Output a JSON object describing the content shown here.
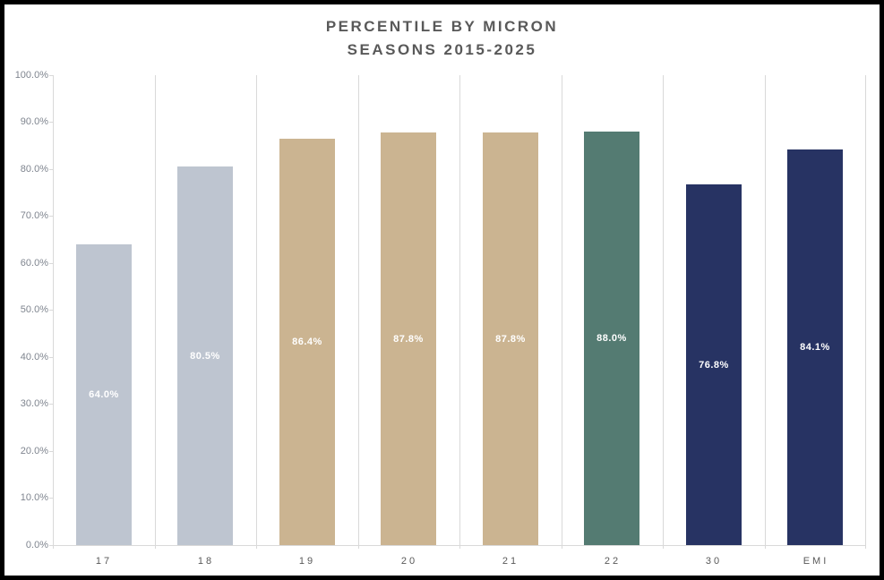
{
  "title": {
    "line1": "PERCENTILE BY MICRON",
    "line2": "SEASONS 2015-2025"
  },
  "chart_data": {
    "type": "bar",
    "title": "PERCENTILE BY MICRON SEASONS 2015-2025",
    "categories": [
      "17",
      "18",
      "19",
      "20",
      "21",
      "22",
      "30",
      "EMI"
    ],
    "values": [
      64.0,
      80.5,
      86.4,
      87.8,
      87.8,
      88.0,
      76.8,
      84.1
    ],
    "bar_labels": [
      "64.0%",
      "80.5%",
      "86.4%",
      "87.8%",
      "87.8%",
      "88.0%",
      "76.8%",
      "84.1%"
    ],
    "bar_colors": [
      "#bec5d0",
      "#bec5d0",
      "#cbb491",
      "#cbb491",
      "#cbb491",
      "#547b72",
      "#273363",
      "#273363"
    ],
    "xlabel": "",
    "ylabel": "",
    "ylim": [
      0,
      100
    ],
    "ytick_interval": 10,
    "ytick_labels": [
      "0.0%",
      "10.0%",
      "20.0%",
      "30.0%",
      "40.0%",
      "50.0%",
      "60.0%",
      "70.0%",
      "80.0%",
      "90.0%",
      "100.0%"
    ],
    "grid": "vertical-category-separators",
    "legend_position": "none",
    "data_label_position": "inside-center",
    "data_label_color": "#ffffff"
  },
  "style_colors": {
    "frame_border": "#000000",
    "background": "#ffffff",
    "gridline": "#d9d9d9",
    "title_text": "#595959",
    "axis_text": "#7f858f",
    "category_text": "#595959"
  }
}
